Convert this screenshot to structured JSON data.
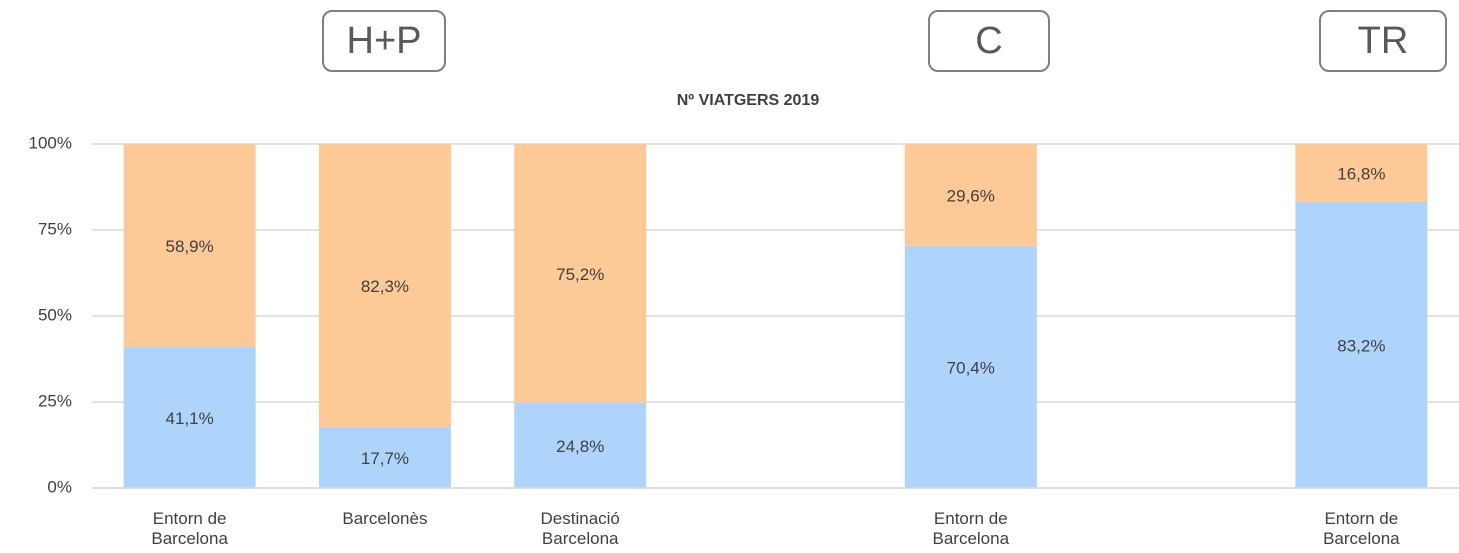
{
  "chart_data": {
    "type": "stacked_bar",
    "title": "Nº VIATGERS 2019",
    "annotations": [
      "H+P",
      "C",
      "TR"
    ],
    "categories": [
      "Entorn de Barcelona",
      "Barcelonès",
      "Destinació Barcelona",
      null,
      "Entorn de Barcelona",
      null,
      "Entorn de Barcelona"
    ],
    "series": [
      {
        "color": "#afd4fc",
        "values": [
          41.1,
          17.7,
          24.8,
          null,
          70.4,
          null,
          83.2
        ],
        "value_labels": [
          "41,1%",
          "17,7%",
          "24,8%",
          null,
          "70,4%",
          null,
          "83,2%"
        ]
      },
      {
        "color": "#fdc996",
        "values": [
          58.9,
          82.3,
          75.2,
          null,
          29.6,
          null,
          16.8
        ],
        "value_labels": [
          "58,9%",
          "82,3%",
          "75,2%",
          null,
          "29,6%",
          null,
          "16,8%"
        ]
      }
    ],
    "ylim": [
      0,
      100
    ],
    "yticks": [
      {
        "value": 0,
        "label": "0%"
      },
      {
        "value": 25,
        "label": "25%"
      },
      {
        "value": 50,
        "label": "50%"
      },
      {
        "value": 75,
        "label": "75%"
      },
      {
        "value": 100,
        "label": "100%"
      }
    ],
    "grid": true
  }
}
